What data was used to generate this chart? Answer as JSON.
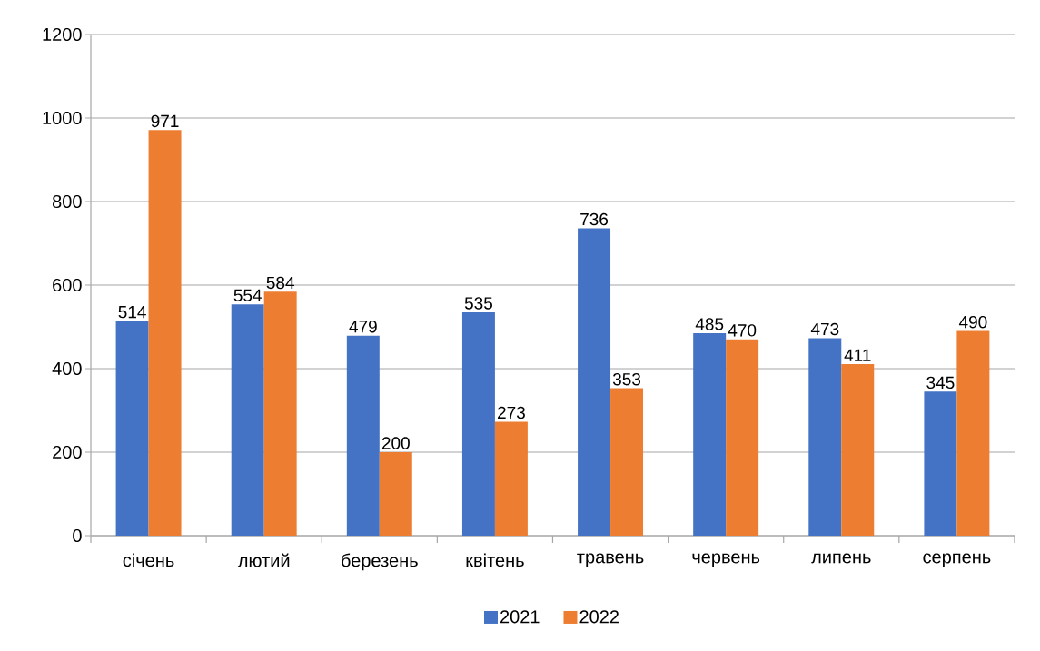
{
  "chart_data": {
    "type": "bar",
    "categories": [
      "січень",
      "лютий",
      "березень",
      "квітень",
      "травень",
      "червень",
      "липень",
      "серпень"
    ],
    "series": [
      {
        "name": "2021",
        "color": "#4472c4",
        "values": [
          514,
          554,
          479,
          535,
          736,
          485,
          473,
          345
        ]
      },
      {
        "name": "2022",
        "color": "#ed7d31",
        "values": [
          971,
          584,
          200,
          273,
          353,
          470,
          411,
          490
        ]
      }
    ],
    "ylim": [
      0,
      1200
    ],
    "yticks": [
      0,
      200,
      400,
      600,
      800,
      1000,
      1200
    ],
    "grid": "y",
    "legend": "bottom",
    "data_labels": true
  }
}
